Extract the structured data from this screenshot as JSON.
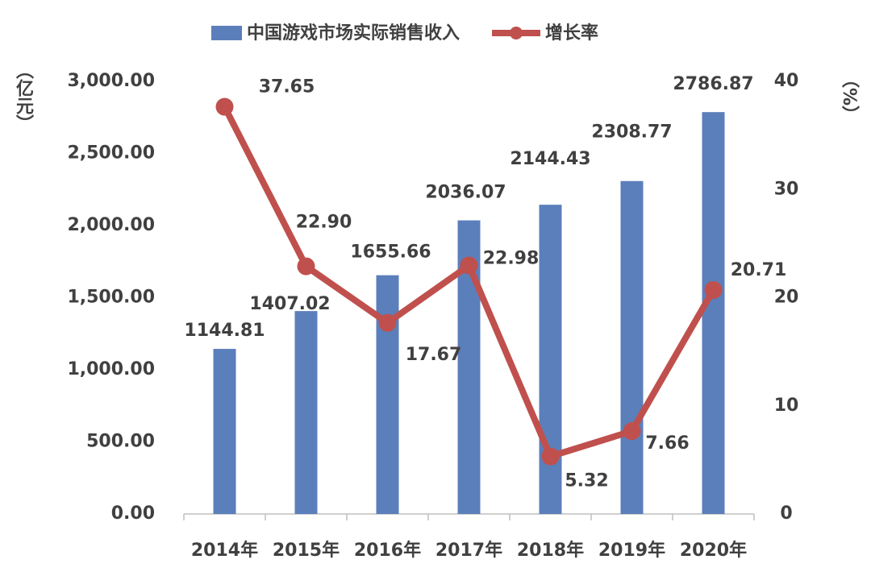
{
  "chart_data": {
    "type": "bar-line",
    "y_label": "（亿元）",
    "y2_label": "（%）",
    "categories": [
      "2014年",
      "2015年",
      "2016年",
      "2017年",
      "2018年",
      "2019年",
      "2020年"
    ],
    "series": [
      {
        "name": "中国游戏市场实际销售收入",
        "type": "bar",
        "color": "#5b7fbb",
        "values": [
          1144.81,
          1407.02,
          1655.66,
          2036.07,
          2144.43,
          2308.77,
          2786.87
        ]
      },
      {
        "name": "增长率",
        "type": "line",
        "axis": "y2",
        "color": "#c0504d",
        "values": [
          37.65,
          22.9,
          17.67,
          22.98,
          5.32,
          7.66,
          20.71
        ],
        "value_labels": [
          "37.65",
          "22.90",
          "17.67",
          "22.98",
          "5.32",
          "7.66",
          "20.71"
        ]
      }
    ],
    "ylim": [
      0,
      3000
    ],
    "yticks": [
      {
        "value": 0,
        "label": "0.00"
      },
      {
        "value": 500,
        "label": "500.00"
      },
      {
        "value": 1000,
        "label": "1,000.00"
      },
      {
        "value": 1500,
        "label": "1,500.00"
      },
      {
        "value": 2000,
        "label": "2,000.00"
      },
      {
        "value": 2500,
        "label": "2,500.00"
      },
      {
        "value": 3000,
        "label": "3,000.00"
      }
    ],
    "y2lim": [
      0,
      40
    ],
    "y2ticks": [
      0,
      10,
      20,
      30,
      40
    ],
    "legend": "top",
    "grid": false
  }
}
